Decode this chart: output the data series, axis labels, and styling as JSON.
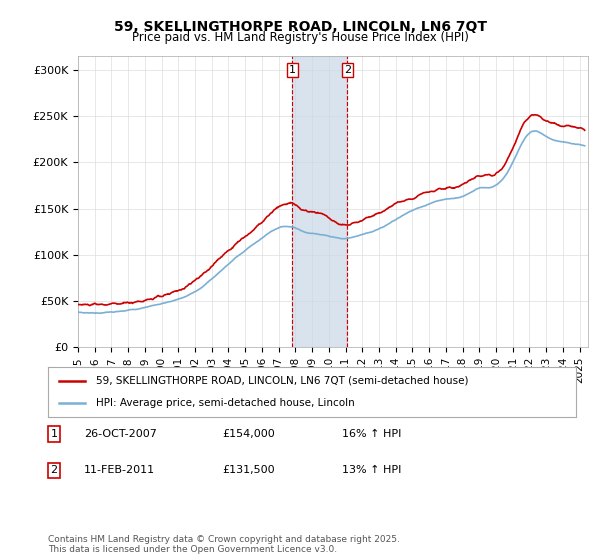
{
  "title": "59, SKELLINGTHORPE ROAD, LINCOLN, LN6 7QT",
  "subtitle": "Price paid vs. HM Land Registry's House Price Index (HPI)",
  "ylabel_ticks": [
    "£0",
    "£50K",
    "£100K",
    "£150K",
    "£200K",
    "£250K",
    "£300K"
  ],
  "ytick_values": [
    0,
    50000,
    100000,
    150000,
    200000,
    250000,
    300000
  ],
  "ylim": [
    0,
    315000
  ],
  "xlim_start": 1995.0,
  "xlim_end": 2025.5,
  "red_color": "#cc0000",
  "blue_color": "#7bafd4",
  "shade_color": "#c8d8e8",
  "marker1_x": 2007.82,
  "marker2_x": 2011.11,
  "marker1_y": 154000,
  "marker2_y": 131500,
  "legend_red_label": "59, SKELLINGTHORPE ROAD, LINCOLN, LN6 7QT (semi-detached house)",
  "legend_blue_label": "HPI: Average price, semi-detached house, Lincoln",
  "table_row1": "26-OCT-2007    £154,000    16% ↑ HPI",
  "table_row2": "11-FEB-2011    £131,500    13% ↑ HPI",
  "footnote": "Contains HM Land Registry data © Crown copyright and database right 2025.\nThis data is licensed under the Open Government Licence v3.0.",
  "background_color": "#ffffff",
  "grid_color": "#dddddd"
}
